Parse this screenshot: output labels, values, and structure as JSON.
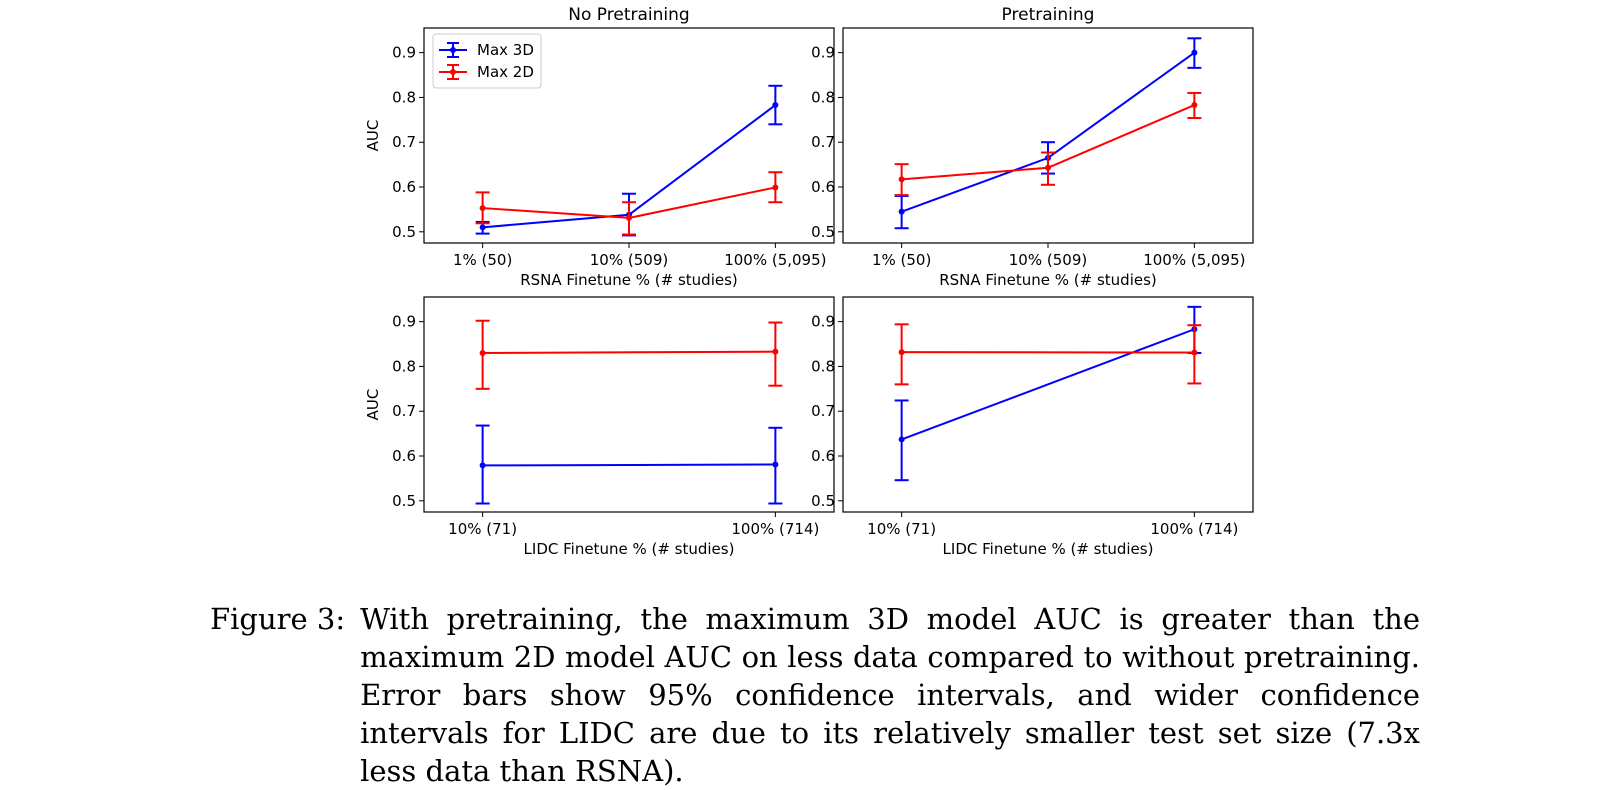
{
  "chart_data": [
    {
      "type": "line",
      "title": "No Pretraining",
      "xlabel": "RSNA Finetune % (# studies)",
      "ylabel": "AUC",
      "categories": [
        "1% (50)",
        "10% (509)",
        "100% (5,095)"
      ],
      "ylim": [
        0.475,
        0.955
      ],
      "yticks": [
        "0.5",
        "0.6",
        "0.7",
        "0.8",
        "0.9"
      ],
      "legend": "upper-left",
      "series": [
        {
          "name": "Max 3D",
          "color": "#0000ff",
          "values": [
            0.51,
            0.538,
            0.783
          ],
          "err_low": [
            0.496,
            0.492,
            0.74
          ],
          "err_high": [
            0.522,
            0.585,
            0.826
          ]
        },
        {
          "name": "Max 2D",
          "color": "#ff0000",
          "values": [
            0.553,
            0.531,
            0.599
          ],
          "err_low": [
            0.519,
            0.494,
            0.566
          ],
          "err_high": [
            0.588,
            0.566,
            0.633
          ]
        }
      ]
    },
    {
      "type": "line",
      "title": "Pretraining",
      "xlabel": "RSNA Finetune % (# studies)",
      "ylabel": "",
      "categories": [
        "1% (50)",
        "10% (509)",
        "100% (5,095)"
      ],
      "ylim": [
        0.475,
        0.955
      ],
      "yticks": [
        "0.5",
        "0.6",
        "0.7",
        "0.8",
        "0.9"
      ],
      "series": [
        {
          "name": "Max 3D",
          "color": "#0000ff",
          "values": [
            0.545,
            0.665,
            0.9
          ],
          "err_low": [
            0.508,
            0.63,
            0.866
          ],
          "err_high": [
            0.58,
            0.7,
            0.932
          ]
        },
        {
          "name": "Max 2D",
          "color": "#ff0000",
          "values": [
            0.617,
            0.643,
            0.783
          ],
          "err_low": [
            0.582,
            0.605,
            0.754
          ],
          "err_high": [
            0.651,
            0.677,
            0.81
          ]
        }
      ]
    },
    {
      "type": "line",
      "title": "",
      "xlabel": "LIDC Finetune % (# studies)",
      "ylabel": "AUC",
      "categories": [
        "10% (71)",
        "100% (714)"
      ],
      "ylim": [
        0.475,
        0.955
      ],
      "yticks": [
        "0.5",
        "0.6",
        "0.7",
        "0.8",
        "0.9"
      ],
      "series": [
        {
          "name": "Max 3D",
          "color": "#0000ff",
          "values": [
            0.579,
            0.581
          ],
          "err_low": [
            0.494,
            0.494
          ],
          "err_high": [
            0.668,
            0.663
          ]
        },
        {
          "name": "Max 2D",
          "color": "#ff0000",
          "values": [
            0.83,
            0.833
          ],
          "err_low": [
            0.75,
            0.757
          ],
          "err_high": [
            0.902,
            0.898
          ]
        }
      ]
    },
    {
      "type": "line",
      "title": "",
      "xlabel": "LIDC Finetune % (# studies)",
      "ylabel": "",
      "categories": [
        "10% (71)",
        "100% (714)"
      ],
      "ylim": [
        0.475,
        0.955
      ],
      "yticks": [
        "0.5",
        "0.6",
        "0.7",
        "0.8",
        "0.9"
      ],
      "series": [
        {
          "name": "Max 3D",
          "color": "#0000ff",
          "values": [
            0.637,
            0.883
          ],
          "err_low": [
            0.546,
            0.83
          ],
          "err_high": [
            0.724,
            0.933
          ]
        },
        {
          "name": "Max 2D",
          "color": "#ff0000",
          "values": [
            0.832,
            0.831
          ],
          "err_low": [
            0.76,
            0.762
          ],
          "err_high": [
            0.894,
            0.892
          ]
        }
      ]
    }
  ],
  "caption": {
    "label": "Figure 3:",
    "text": "With pretraining, the maximum 3D model AUC is greater than the maximum 2D model AUC on less data compared to without pretraining. Error bars show 95% confidence intervals, and wider confidence intervals for LIDC are due to its relatively smaller test set size (7.3x less data than RSNA)."
  }
}
